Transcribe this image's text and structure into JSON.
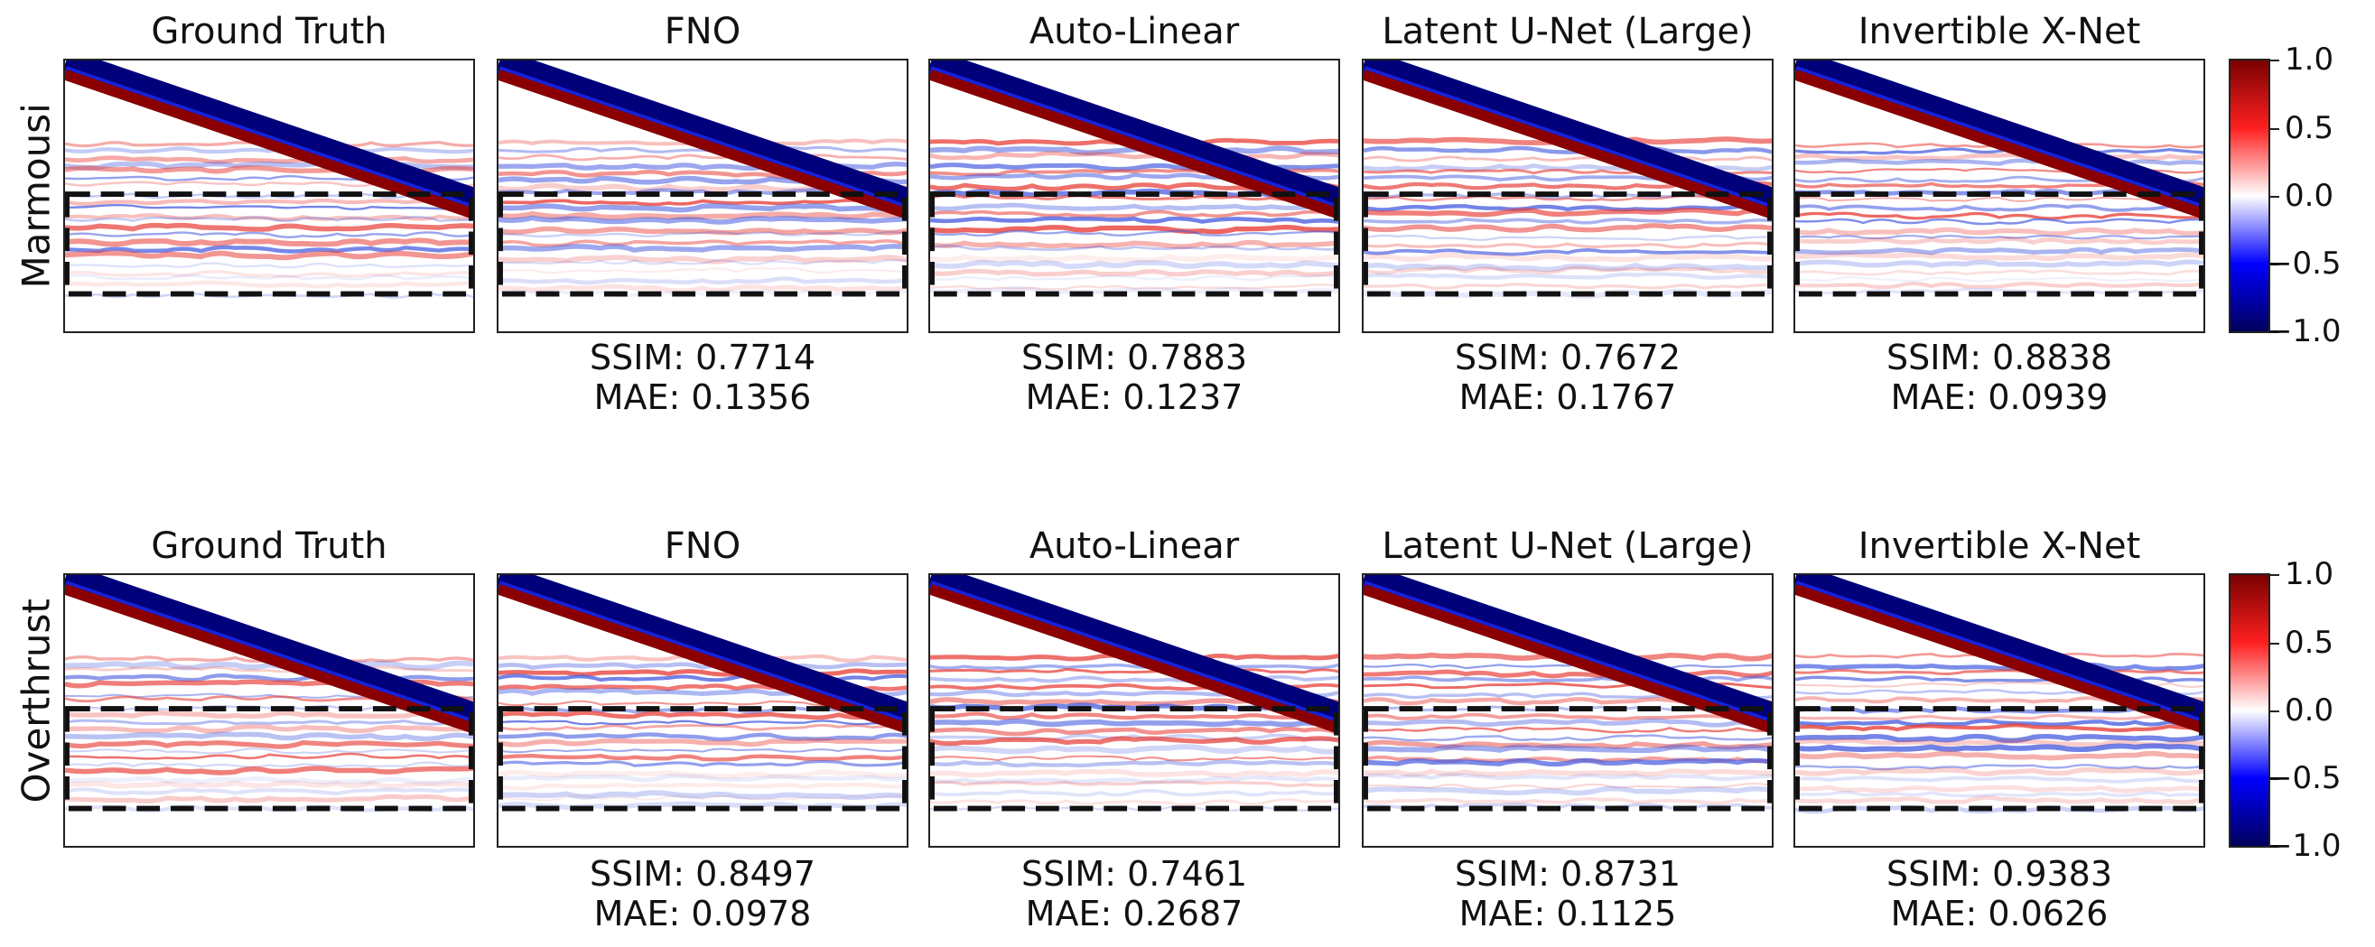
{
  "rows": [
    {
      "label": "Marmousi",
      "panels": [
        {
          "title": "Ground Truth",
          "ssim": "",
          "mae": ""
        },
        {
          "title": "FNO",
          "ssim": "SSIM: 0.7714",
          "mae": "MAE: 0.1356"
        },
        {
          "title": "Auto-Linear",
          "ssim": "SSIM: 0.7883",
          "mae": "MAE: 0.1237"
        },
        {
          "title": "Latent U-Net (Large)",
          "ssim": "SSIM: 0.7672",
          "mae": "MAE: 0.1767"
        },
        {
          "title": "Invertible X-Net",
          "ssim": "SSIM: 0.8838",
          "mae": "MAE: 0.0939"
        }
      ]
    },
    {
      "label": "Overthrust",
      "panels": [
        {
          "title": "Ground Truth",
          "ssim": "",
          "mae": ""
        },
        {
          "title": "FNO",
          "ssim": "SSIM: 0.8497",
          "mae": "MAE: 0.0978"
        },
        {
          "title": "Auto-Linear",
          "ssim": "SSIM: 0.7461",
          "mae": "MAE: 0.2687"
        },
        {
          "title": "Latent U-Net (Large)",
          "ssim": "SSIM: 0.8731",
          "mae": "MAE: 0.1125"
        },
        {
          "title": "Invertible X-Net",
          "ssim": "SSIM: 0.9383",
          "mae": "MAE: 0.0626"
        }
      ]
    }
  ],
  "colorbar": {
    "ticks": [
      "1.0",
      "0.5",
      "0.0",
      "−0.5",
      "−1.0"
    ],
    "colors": {
      "max": "#7a0000",
      "high": "#ff2020",
      "mid": "#ffffff",
      "low": "#0000ff",
      "min": "#00005c"
    }
  }
}
